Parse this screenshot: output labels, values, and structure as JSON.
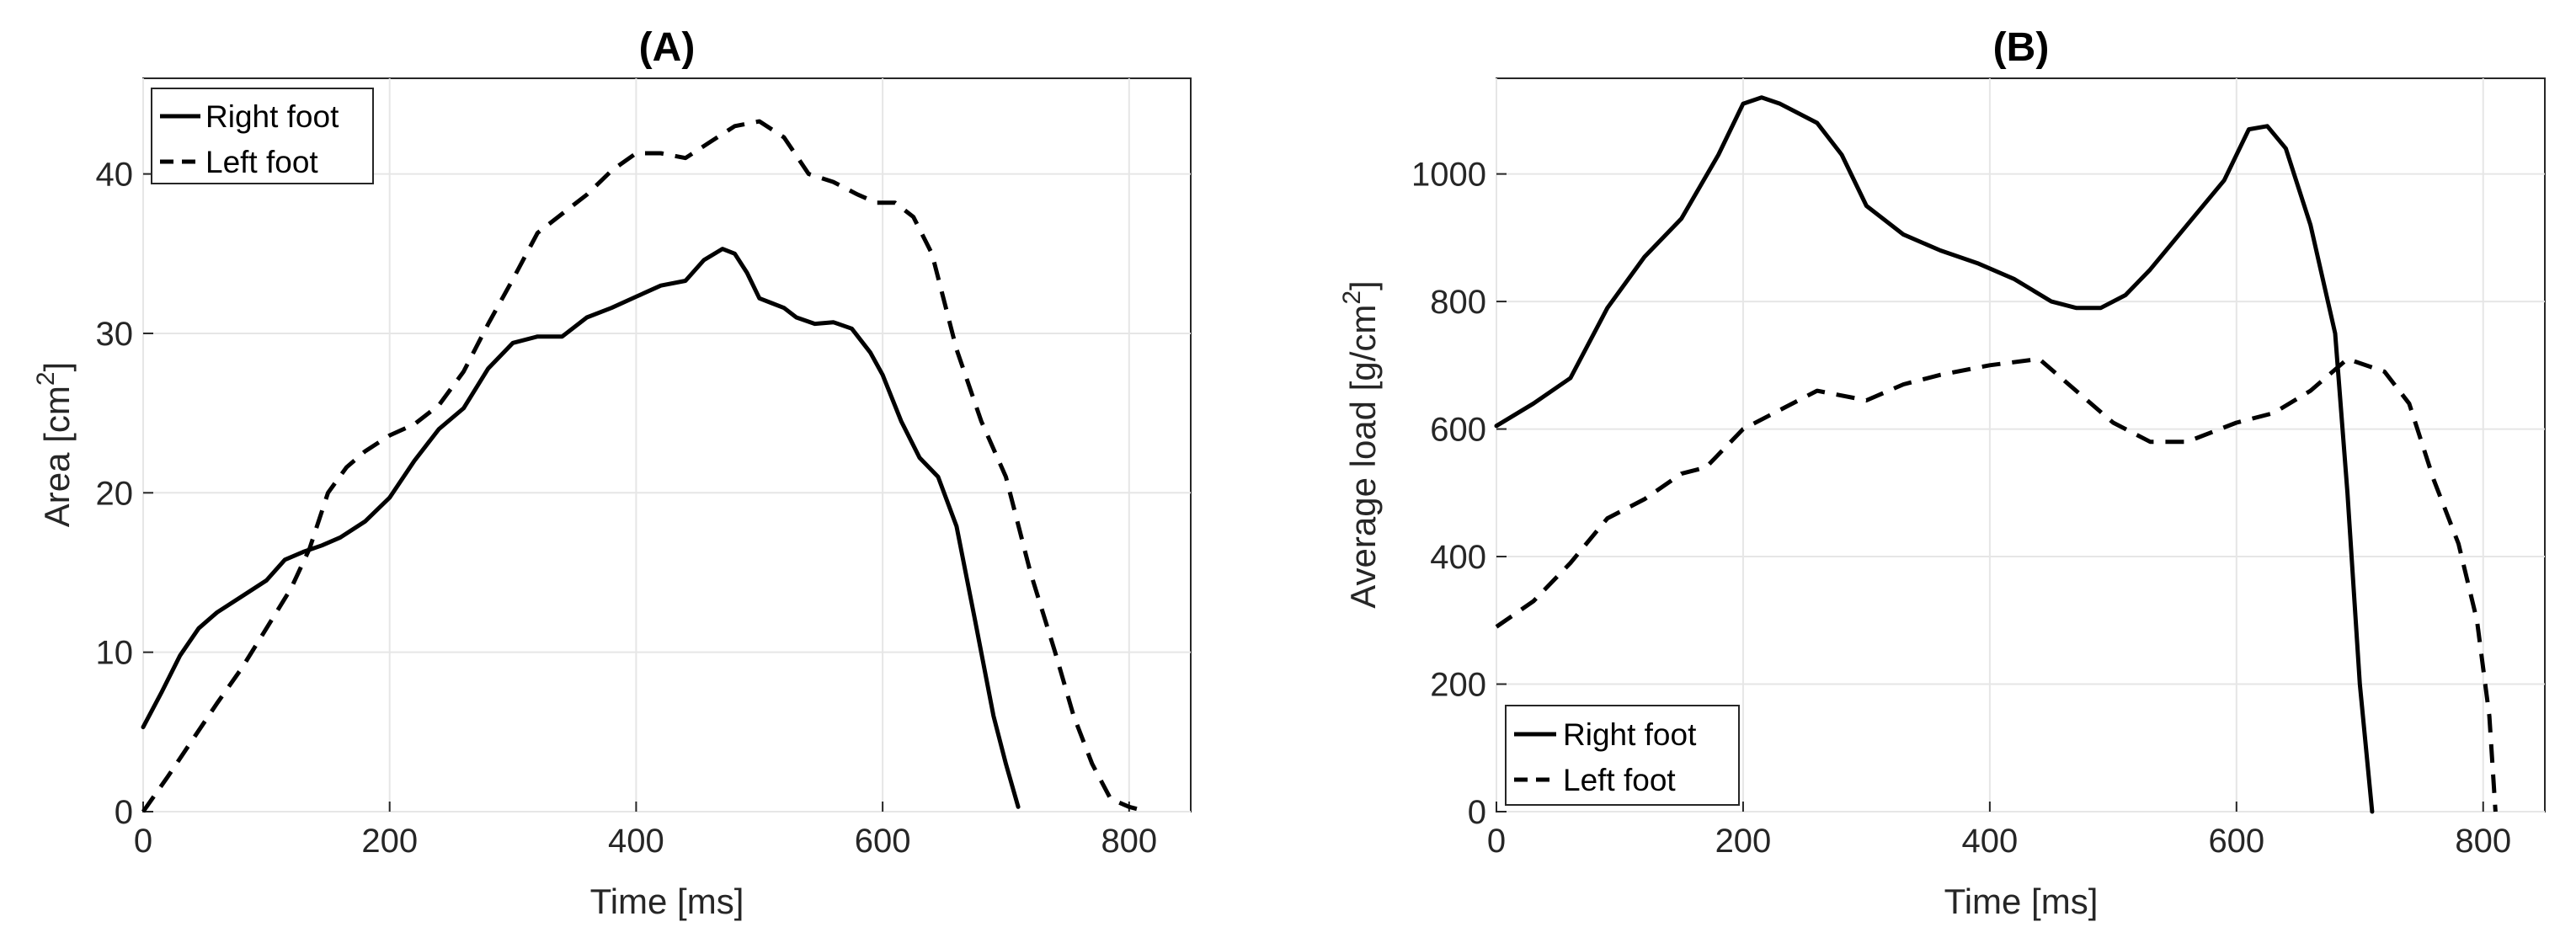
{
  "chart_data": [
    {
      "type": "line",
      "title": "(A)",
      "xlabel": "Time [ms]",
      "ylabel": "Area [cm",
      "ylabel_sup": "2",
      "ylabel_close": "]",
      "xlim": [
        0,
        850
      ],
      "ylim": [
        0,
        46
      ],
      "xticks": [
        0,
        200,
        400,
        600,
        800
      ],
      "yticks": [
        0,
        10,
        20,
        30,
        40
      ],
      "grid": true,
      "legend_position": "top-left",
      "series": [
        {
          "name": "Right foot",
          "style": "solid",
          "color": "#000000",
          "x": [
            0,
            15,
            30,
            45,
            60,
            80,
            100,
            115,
            130,
            145,
            160,
            180,
            200,
            220,
            240,
            260,
            280,
            300,
            320,
            340,
            360,
            380,
            400,
            420,
            440,
            455,
            470,
            480,
            490,
            500,
            510,
            520,
            530,
            545,
            560,
            575,
            590,
            600,
            615,
            630,
            645,
            660,
            675,
            690,
            700,
            710
          ],
          "y": [
            5.3,
            7.5,
            9.8,
            11.5,
            12.5,
            13.5,
            14.5,
            15.8,
            16.3,
            16.7,
            17.2,
            18.2,
            19.7,
            22.0,
            24.0,
            25.3,
            27.8,
            29.4,
            29.8,
            29.8,
            31.0,
            31.6,
            32.3,
            33.0,
            33.3,
            34.6,
            35.3,
            35.0,
            33.8,
            32.2,
            31.9,
            31.6,
            31.0,
            30.6,
            30.7,
            30.3,
            28.8,
            27.4,
            24.5,
            22.2,
            21.0,
            17.9,
            12.0,
            6.0,
            3.0,
            0.3
          ]
        },
        {
          "name": "Left foot",
          "style": "dashed",
          "color": "#000000",
          "x": [
            0,
            20,
            40,
            60,
            80,
            100,
            120,
            135,
            150,
            165,
            180,
            200,
            220,
            240,
            260,
            280,
            300,
            320,
            340,
            360,
            380,
            400,
            420,
            440,
            460,
            480,
            500,
            520,
            540,
            560,
            580,
            595,
            610,
            625,
            640,
            660,
            680,
            700,
            720,
            740,
            755,
            770,
            785,
            800,
            810
          ],
          "y": [
            0,
            2.2,
            4.5,
            6.8,
            9.0,
            11.5,
            14.0,
            16.5,
            20.0,
            21.6,
            22.6,
            23.6,
            24.3,
            25.5,
            27.6,
            30.6,
            33.4,
            36.3,
            37.5,
            38.7,
            40.2,
            41.3,
            41.3,
            41.0,
            42.0,
            43.0,
            43.3,
            42.3,
            40.0,
            39.5,
            38.7,
            38.2,
            38.2,
            37.3,
            35.0,
            29.0,
            24.5,
            21.0,
            15.0,
            10.0,
            6.0,
            3.0,
            0.8,
            0.3,
            0.1
          ]
        }
      ]
    },
    {
      "type": "line",
      "title": "(B)",
      "xlabel": "Time [ms]",
      "ylabel": "Average load [g/cm",
      "ylabel_sup": "2",
      "ylabel_close": "]",
      "xlim": [
        0,
        850
      ],
      "ylim": [
        0,
        1150
      ],
      "xticks": [
        0,
        200,
        400,
        600,
        800
      ],
      "yticks": [
        0,
        200,
        400,
        600,
        800,
        1000
      ],
      "grid": true,
      "legend_position": "bottom-left",
      "series": [
        {
          "name": "Right foot",
          "style": "solid",
          "color": "#000000",
          "x": [
            0,
            30,
            60,
            90,
            120,
            150,
            180,
            200,
            215,
            230,
            260,
            280,
            300,
            330,
            360,
            390,
            420,
            450,
            470,
            490,
            510,
            530,
            560,
            590,
            610,
            625,
            640,
            660,
            680,
            690,
            700,
            710
          ],
          "y": [
            605,
            640,
            680,
            790,
            870,
            930,
            1030,
            1110,
            1120,
            1110,
            1080,
            1030,
            950,
            905,
            880,
            860,
            835,
            800,
            790,
            790,
            810,
            850,
            920,
            990,
            1070,
            1075,
            1040,
            920,
            750,
            500,
            200,
            0
          ],
          "x_end_note": "drops to 0 near 710 ms"
        },
        {
          "name": "Left foot",
          "style": "dashed",
          "color": "#000000",
          "x": [
            0,
            30,
            60,
            90,
            120,
            150,
            170,
            200,
            230,
            260,
            300,
            330,
            360,
            400,
            440,
            470,
            500,
            530,
            560,
            600,
            630,
            660,
            690,
            720,
            740,
            760,
            780,
            795,
            805,
            810
          ],
          "y": [
            290,
            330,
            390,
            460,
            490,
            530,
            540,
            600,
            630,
            660,
            645,
            670,
            685,
            700,
            710,
            660,
            610,
            580,
            580,
            610,
            625,
            660,
            710,
            690,
            640,
            520,
            420,
            300,
            150,
            0
          ]
        }
      ]
    }
  ]
}
